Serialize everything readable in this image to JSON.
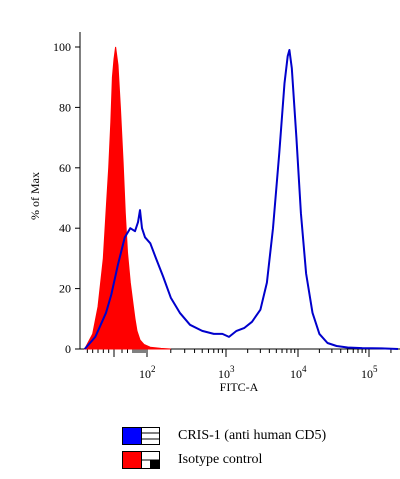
{
  "chart_data": {
    "type": "histogram-overlay",
    "xlabel": "FITC-A",
    "ylabel": "% of Max",
    "x_scale": "logicle (biexponential), ticks at 10^2, 10^3, 10^4, 10^5",
    "xlim": [
      -60,
      250000
    ],
    "ylim": [
      0,
      100
    ],
    "y_ticks": [
      "0",
      "20",
      "40",
      "60",
      "80",
      "100"
    ],
    "x_ticks": [
      {
        "base": "10",
        "exp": "2"
      },
      {
        "base": "10",
        "exp": "3"
      },
      {
        "base": "10",
        "exp": "4"
      },
      {
        "base": "10",
        "exp": "5"
      }
    ],
    "series": [
      {
        "name": "CRIS-1 (anti human CD5)",
        "style": "line",
        "color": "#0000cc",
        "points": [
          [
            -55,
            0
          ],
          [
            -45,
            2
          ],
          [
            -35,
            4
          ],
          [
            -25,
            8
          ],
          [
            -15,
            12
          ],
          [
            -5,
            18
          ],
          [
            5,
            28
          ],
          [
            15,
            37
          ],
          [
            25,
            40
          ],
          [
            40,
            39
          ],
          [
            55,
            42
          ],
          [
            65,
            46
          ],
          [
            75,
            40
          ],
          [
            90,
            37
          ],
          [
            110,
            35
          ],
          [
            130,
            30
          ],
          [
            160,
            24
          ],
          [
            200,
            17
          ],
          [
            260,
            12
          ],
          [
            350,
            8
          ],
          [
            500,
            6
          ],
          [
            700,
            5
          ],
          [
            900,
            5
          ],
          [
            1100,
            4
          ],
          [
            1400,
            6
          ],
          [
            1800,
            7
          ],
          [
            2300,
            9
          ],
          [
            3000,
            13
          ],
          [
            3700,
            22
          ],
          [
            4500,
            40
          ],
          [
            5500,
            65
          ],
          [
            6500,
            88
          ],
          [
            7200,
            97
          ],
          [
            7600,
            99
          ],
          [
            8200,
            93
          ],
          [
            9500,
            70
          ],
          [
            11000,
            45
          ],
          [
            13000,
            25
          ],
          [
            16000,
            12
          ],
          [
            20000,
            5
          ],
          [
            26000,
            2
          ],
          [
            35000,
            1
          ],
          [
            50000,
            0.5
          ],
          [
            80000,
            0.3
          ],
          [
            150000,
            0.2
          ],
          [
            250000,
            0
          ]
        ]
      },
      {
        "name": "Isotype control",
        "style": "filled",
        "color": "#ff0000",
        "points": [
          [
            -55,
            0
          ],
          [
            -40,
            5
          ],
          [
            -30,
            14
          ],
          [
            -20,
            30
          ],
          [
            -14,
            48
          ],
          [
            -10,
            60
          ],
          [
            -6,
            75
          ],
          [
            -3,
            90
          ],
          [
            0,
            96
          ],
          [
            2,
            100
          ],
          [
            5,
            94
          ],
          [
            8,
            80
          ],
          [
            12,
            62
          ],
          [
            16,
            45
          ],
          [
            20,
            32
          ],
          [
            25,
            22
          ],
          [
            32,
            14
          ],
          [
            40,
            10
          ],
          [
            50,
            6
          ],
          [
            65,
            3
          ],
          [
            85,
            1.5
          ],
          [
            110,
            0.6
          ],
          [
            150,
            0.2
          ],
          [
            200,
            0
          ]
        ]
      }
    ],
    "legend_placement": "bottom"
  }
}
